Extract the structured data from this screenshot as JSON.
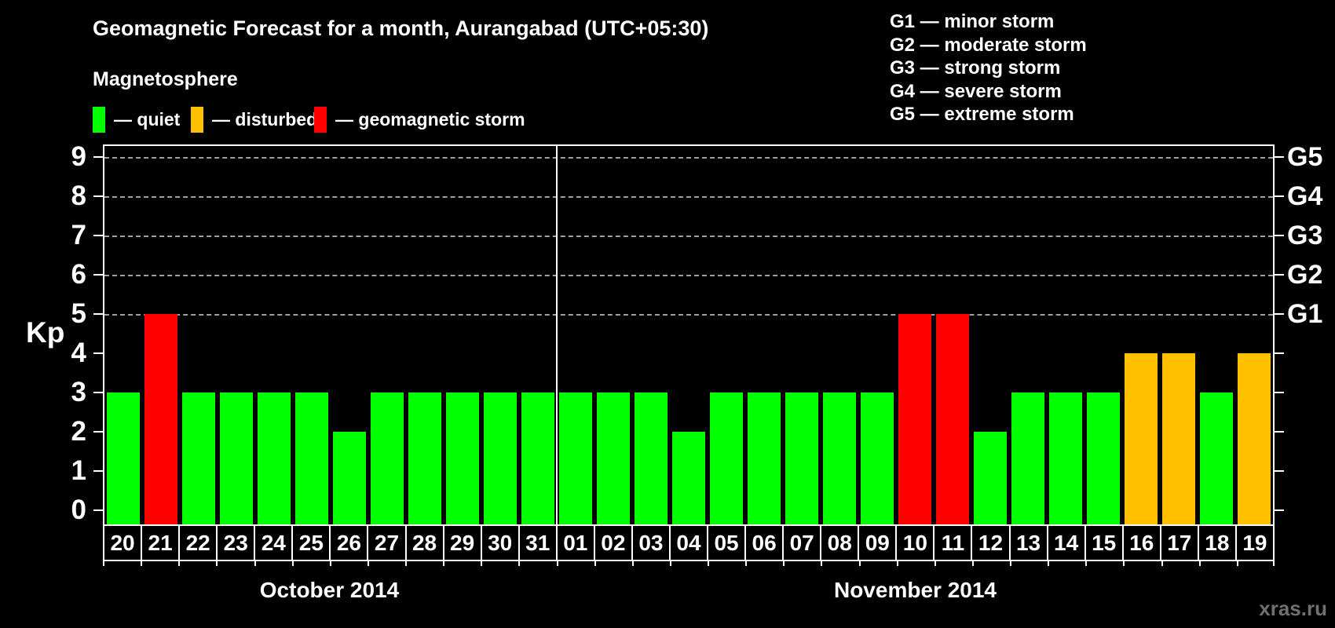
{
  "title": "Geomagnetic Forecast for a month, Aurangabad (UTC+05:30)",
  "watermark": "xras.ru",
  "g_scale": {
    "items": [
      {
        "code": "G1",
        "text": "G1 — minor storm"
      },
      {
        "code": "G2",
        "text": "G2 — moderate storm"
      },
      {
        "code": "G3",
        "text": "G3 — strong storm"
      },
      {
        "code": "G4",
        "text": "G4 — severe storm"
      },
      {
        "code": "G5",
        "text": "G5 — extreme storm"
      }
    ]
  },
  "legend": {
    "title": "Magnetosphere",
    "items": [
      {
        "status": "quiet",
        "label": "— quiet",
        "color": "#00ff00"
      },
      {
        "status": "disturbed",
        "label": "— disturbed",
        "color": "#ffc000"
      },
      {
        "status": "storm",
        "label": "— geomagnetic storm",
        "color": "#ff0000"
      }
    ]
  },
  "chart_data": {
    "type": "bar",
    "title": "Geomagnetic Forecast for a month, Aurangabad (UTC+05:30)",
    "ylabel": "Kp",
    "ylim": [
      0,
      9
    ],
    "yticks": [
      0,
      1,
      2,
      3,
      4,
      5,
      6,
      7,
      8,
      9
    ],
    "grid_levels": [
      5,
      6,
      7,
      8,
      9
    ],
    "right_axis": [
      {
        "level": 5,
        "label": "G1"
      },
      {
        "level": 6,
        "label": "G2"
      },
      {
        "level": 7,
        "label": "G3"
      },
      {
        "level": 8,
        "label": "G4"
      },
      {
        "level": 9,
        "label": "G5"
      }
    ],
    "status_colors": {
      "quiet": "#00ff00",
      "disturbed": "#ffc000",
      "storm": "#ff0000"
    },
    "groups": [
      {
        "label": "October 2014",
        "bars": [
          {
            "day": "20",
            "kp": 3,
            "status": "quiet"
          },
          {
            "day": "21",
            "kp": 5,
            "status": "storm"
          },
          {
            "day": "22",
            "kp": 3,
            "status": "quiet"
          },
          {
            "day": "23",
            "kp": 3,
            "status": "quiet"
          },
          {
            "day": "24",
            "kp": 3,
            "status": "quiet"
          },
          {
            "day": "25",
            "kp": 3,
            "status": "quiet"
          },
          {
            "day": "26",
            "kp": 2,
            "status": "quiet"
          },
          {
            "day": "27",
            "kp": 3,
            "status": "quiet"
          },
          {
            "day": "28",
            "kp": 3,
            "status": "quiet"
          },
          {
            "day": "29",
            "kp": 3,
            "status": "quiet"
          },
          {
            "day": "30",
            "kp": 3,
            "status": "quiet"
          },
          {
            "day": "31",
            "kp": 3,
            "status": "quiet"
          }
        ]
      },
      {
        "label": "November 2014",
        "bars": [
          {
            "day": "01",
            "kp": 3,
            "status": "quiet"
          },
          {
            "day": "02",
            "kp": 3,
            "status": "quiet"
          },
          {
            "day": "03",
            "kp": 3,
            "status": "quiet"
          },
          {
            "day": "04",
            "kp": 2,
            "status": "quiet"
          },
          {
            "day": "05",
            "kp": 3,
            "status": "quiet"
          },
          {
            "day": "06",
            "kp": 3,
            "status": "quiet"
          },
          {
            "day": "07",
            "kp": 3,
            "status": "quiet"
          },
          {
            "day": "08",
            "kp": 3,
            "status": "quiet"
          },
          {
            "day": "09",
            "kp": 3,
            "status": "quiet"
          },
          {
            "day": "10",
            "kp": 5,
            "status": "storm"
          },
          {
            "day": "11",
            "kp": 5,
            "status": "storm"
          },
          {
            "day": "12",
            "kp": 2,
            "status": "quiet"
          },
          {
            "day": "13",
            "kp": 3,
            "status": "quiet"
          },
          {
            "day": "14",
            "kp": 3,
            "status": "quiet"
          },
          {
            "day": "15",
            "kp": 3,
            "status": "quiet"
          },
          {
            "day": "16",
            "kp": 4,
            "status": "disturbed"
          },
          {
            "day": "17",
            "kp": 4,
            "status": "disturbed"
          },
          {
            "day": "18",
            "kp": 3,
            "status": "quiet"
          },
          {
            "day": "19",
            "kp": 4,
            "status": "disturbed"
          }
        ]
      }
    ]
  }
}
